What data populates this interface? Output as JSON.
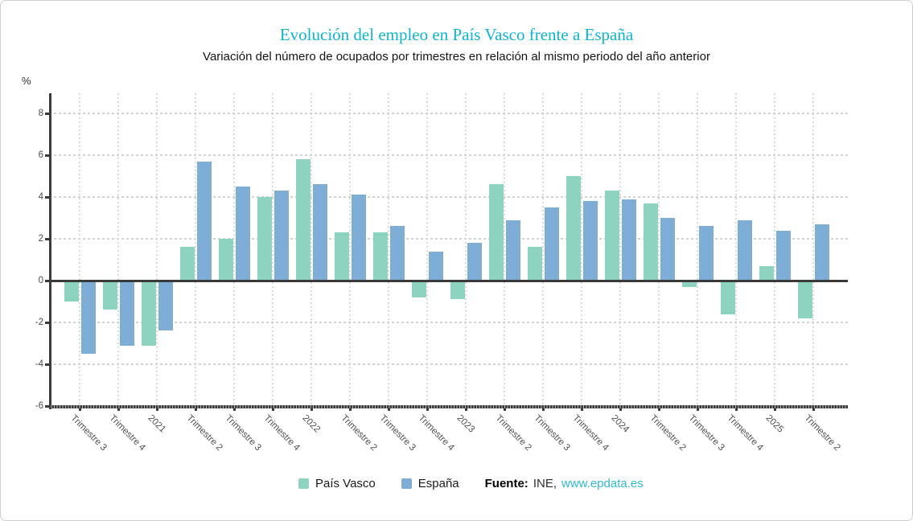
{
  "chart_data": {
    "type": "bar",
    "title": "Evolución del empleo en País Vasco frente a España",
    "subtitle": "Variación del número de ocupados por trimestres en relación al mismo periodo del año anterior",
    "ylabel": "%",
    "ylim": [
      -6,
      9
    ],
    "y_ticks": [
      8,
      6,
      4,
      2,
      0,
      -2,
      -4,
      -6
    ],
    "grid": true,
    "legend_position": "bottom",
    "categories": [
      "Trimestre 3",
      "Trimestre 4",
      "2021",
      "Trimestre 2",
      "Trimestre 3",
      "Trimestre 4",
      "2022",
      "Trimestre 2",
      "Trimestre 3",
      "Trimestre 4",
      "2023",
      "Trimestre 2",
      "Trimestre 3",
      "Trimestre 4",
      "2024",
      "Trimestre 2",
      "Trimestre 3",
      "Trimestre 4",
      "2025",
      "Trimestre 2"
    ],
    "series": [
      {
        "name": "País Vasco",
        "color": "#8dd3c0",
        "values": [
          -1.0,
          -1.4,
          -3.1,
          1.6,
          2.0,
          4.0,
          5.8,
          2.3,
          2.3,
          -0.8,
          -0.9,
          4.6,
          1.6,
          5.0,
          4.3,
          3.7,
          -0.3,
          -1.6,
          0.7,
          -1.8
        ]
      },
      {
        "name": "España",
        "color": "#7eadd6",
        "values": [
          -3.5,
          -3.1,
          -2.4,
          5.7,
          4.5,
          4.3,
          4.6,
          4.1,
          2.6,
          1.4,
          1.8,
          2.9,
          3.5,
          3.8,
          3.9,
          3.0,
          2.6,
          2.9,
          2.4,
          2.7
        ]
      }
    ]
  },
  "colors": {
    "title": "#0db5d4",
    "pais_vasco": "#8dd3c0",
    "espana": "#7eadd6",
    "link": "#2fbad8",
    "axis": "#3a3a3a",
    "grid": "#d2d2d2"
  },
  "source": {
    "prefix": "Fuente:",
    "name": "INE,",
    "link": "www.epdata.es"
  }
}
